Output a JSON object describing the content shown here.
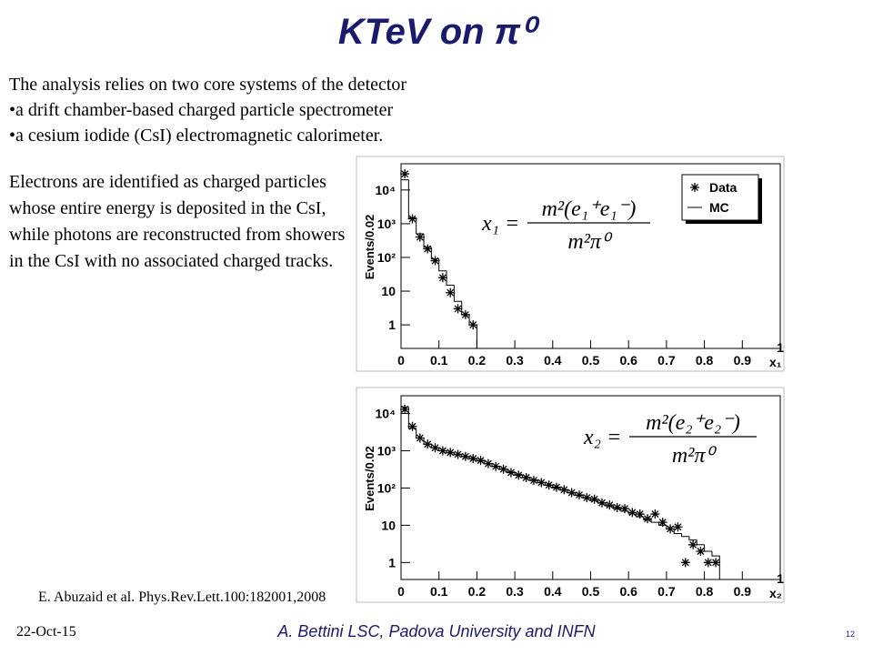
{
  "title": "KTeV on π⁰",
  "intro": "The analysis relies on two core systems of the detector",
  "bullets": [
    "•a drift chamber-based charged particle spectrometer",
    "•a cesium iodide (CsI) electromagnetic calorimeter."
  ],
  "body": "Electrons are identified as charged particles whose entire energy is deposited in the CsI, while photons are reconstructed from showers in the CsI with no associated charged tracks.",
  "citation": "E. Abuzaid et al. Phys.Rev.Lett.100:182001,2008",
  "footer": {
    "date": "22-Oct-15",
    "author": "A. Bettini LSC, Padova University and INFN",
    "page": "12"
  },
  "chart_data": [
    {
      "type": "histogram",
      "log_y": true,
      "y_label": "Events/0.02",
      "x_label": "x₁",
      "formula": {
        "lhs": "x₁ =",
        "numerator": "m²(e₁⁺e₁⁻)",
        "denominator": "m²π⁰"
      },
      "xlim": [
        0,
        1
      ],
      "ylim": [
        0.2,
        60000
      ],
      "xticks": [
        0,
        0.1,
        0.2,
        0.3,
        0.4,
        0.5,
        0.6,
        0.7,
        0.8,
        0.9,
        1
      ],
      "yticks": [
        1,
        10,
        {
          "value": 100,
          "label": "10²"
        },
        {
          "value": 1000,
          "label": "10³"
        },
        {
          "value": 10000,
          "label": "10⁴"
        }
      ],
      "legend": "upper right",
      "series": [
        {
          "name": "Data",
          "color": "#000000",
          "marker": "star",
          "x": [
            0.01,
            0.03,
            0.05,
            0.07,
            0.09,
            0.11,
            0.13,
            0.15,
            0.17,
            0.19
          ],
          "values": [
            30000,
            1400,
            400,
            180,
            80,
            25,
            9,
            3,
            2,
            1
          ]
        },
        {
          "name": "MC",
          "color": "#000000",
          "marker": "step",
          "bins": [
            0,
            0.02,
            0.04,
            0.06,
            0.08,
            0.1,
            0.12,
            0.14,
            0.16,
            0.18,
            0.2
          ],
          "values": [
            20000,
            1500,
            500,
            200,
            90,
            40,
            15,
            5,
            2,
            1
          ]
        }
      ]
    },
    {
      "type": "histogram",
      "log_y": true,
      "y_label": "Events/0.02",
      "x_label": "x₂",
      "formula": {
        "lhs": "x₂ =",
        "numerator": "m²(e₂⁺e₂⁻)",
        "denominator": "m²π⁰"
      },
      "xlim": [
        0,
        1
      ],
      "ylim": [
        0.35,
        30000
      ],
      "xticks": [
        0,
        0.1,
        0.2,
        0.3,
        0.4,
        0.5,
        0.6,
        0.7,
        0.8,
        0.9,
        1
      ],
      "yticks": [
        1,
        10,
        {
          "value": 100,
          "label": "10²"
        },
        {
          "value": 1000,
          "label": "10³"
        },
        {
          "value": 10000,
          "label": "10⁴"
        }
      ],
      "series": [
        {
          "color": "#000000",
          "marker": "star",
          "x": [
            0.01,
            0.03,
            0.05,
            0.07,
            0.09,
            0.11,
            0.13,
            0.15,
            0.17,
            0.19,
            0.21,
            0.23,
            0.25,
            0.27,
            0.29,
            0.31,
            0.33,
            0.35,
            0.37,
            0.39,
            0.41,
            0.43,
            0.45,
            0.47,
            0.49,
            0.51,
            0.53,
            0.55,
            0.57,
            0.59,
            0.61,
            0.63,
            0.65,
            0.67,
            0.69,
            0.71,
            0.73,
            0.75,
            0.77,
            0.79,
            0.81,
            0.83
          ],
          "values": [
            13000,
            4500,
            2200,
            1500,
            1200,
            1000,
            900,
            800,
            700,
            620,
            550,
            450,
            380,
            320,
            260,
            220,
            190,
            160,
            140,
            120,
            105,
            90,
            75,
            65,
            55,
            50,
            40,
            35,
            30,
            28,
            22,
            20,
            15,
            20,
            12,
            8,
            9,
            1,
            3,
            2,
            1,
            1
          ]
        },
        {
          "color": "#000000",
          "marker": "step",
          "bins": [
            0,
            0.02,
            0.04,
            0.06,
            0.08,
            0.1,
            0.12,
            0.14,
            0.16,
            0.18,
            0.2,
            0.22,
            0.24,
            0.26,
            0.28,
            0.3,
            0.32,
            0.34,
            0.36,
            0.38,
            0.4,
            0.42,
            0.44,
            0.46,
            0.48,
            0.5,
            0.52,
            0.54,
            0.56,
            0.58,
            0.6,
            0.62,
            0.64,
            0.66,
            0.68,
            0.7,
            0.72,
            0.74,
            0.76,
            0.78,
            0.8,
            0.82,
            0.84
          ],
          "values": [
            15000,
            4000,
            2200,
            1500,
            1200,
            1000,
            880,
            780,
            690,
            610,
            530,
            450,
            380,
            320,
            270,
            230,
            195,
            165,
            140,
            118,
            100,
            87,
            74,
            63,
            54,
            46,
            39,
            33,
            28,
            24,
            20,
            17,
            14,
            12,
            10,
            8,
            6,
            5,
            4,
            3,
            2,
            1.5
          ]
        }
      ]
    }
  ]
}
